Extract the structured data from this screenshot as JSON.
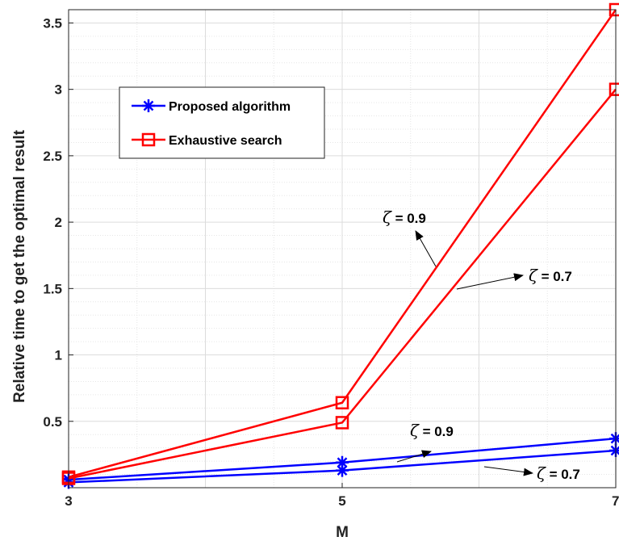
{
  "chart_data": {
    "type": "line",
    "xlabel": "M",
    "ylabel": "Relative time to get the optimal result",
    "xlim": [
      3,
      7
    ],
    "ylim": [
      0,
      3.6
    ],
    "x": [
      3,
      5,
      7
    ],
    "x_ticks": [
      "3",
      "5",
      "7"
    ],
    "y_ticks": [
      0.5,
      1,
      1.5,
      2,
      2.5,
      3,
      3.5
    ],
    "y_tick_labels": [
      "0.5",
      "1",
      "1.5",
      "2",
      "2.5",
      "3",
      "3.5"
    ],
    "grid": true,
    "legend_position": "upper-left",
    "series": [
      {
        "name": "Proposed algorithm",
        "condition": "ζ = 0.9",
        "marker": "asterisk",
        "color": "#0000ff",
        "values": [
          0.06,
          0.19,
          0.37
        ]
      },
      {
        "name": "Proposed algorithm",
        "condition": "ζ = 0.7",
        "marker": "asterisk",
        "color": "#0000ff",
        "values": [
          0.04,
          0.13,
          0.28
        ]
      },
      {
        "name": "Exhaustive search",
        "condition": "ζ = 0.9",
        "marker": "square",
        "color": "#ff0000",
        "values": [
          0.08,
          0.64,
          3.6
        ]
      },
      {
        "name": "Exhaustive search",
        "condition": "ζ = 0.7",
        "marker": "square",
        "color": "#ff0000",
        "values": [
          0.07,
          0.49,
          3.0
        ]
      }
    ],
    "legend": [
      {
        "label": "Proposed algorithm",
        "marker": "asterisk",
        "color": "#0000ff"
      },
      {
        "label": "Exhaustive search",
        "marker": "square",
        "color": "#ff0000"
      }
    ],
    "annotations": [
      {
        "symbol": "ζ",
        "text": " = 0.9",
        "target": "Exhaustive search"
      },
      {
        "symbol": "ζ",
        "text": " = 0.7",
        "target": "Exhaustive search"
      },
      {
        "symbol": "ζ",
        "text": " = 0.9",
        "target": "Proposed algorithm"
      },
      {
        "symbol": "ζ",
        "text": " = 0.7",
        "target": "Proposed algorithm"
      }
    ]
  }
}
